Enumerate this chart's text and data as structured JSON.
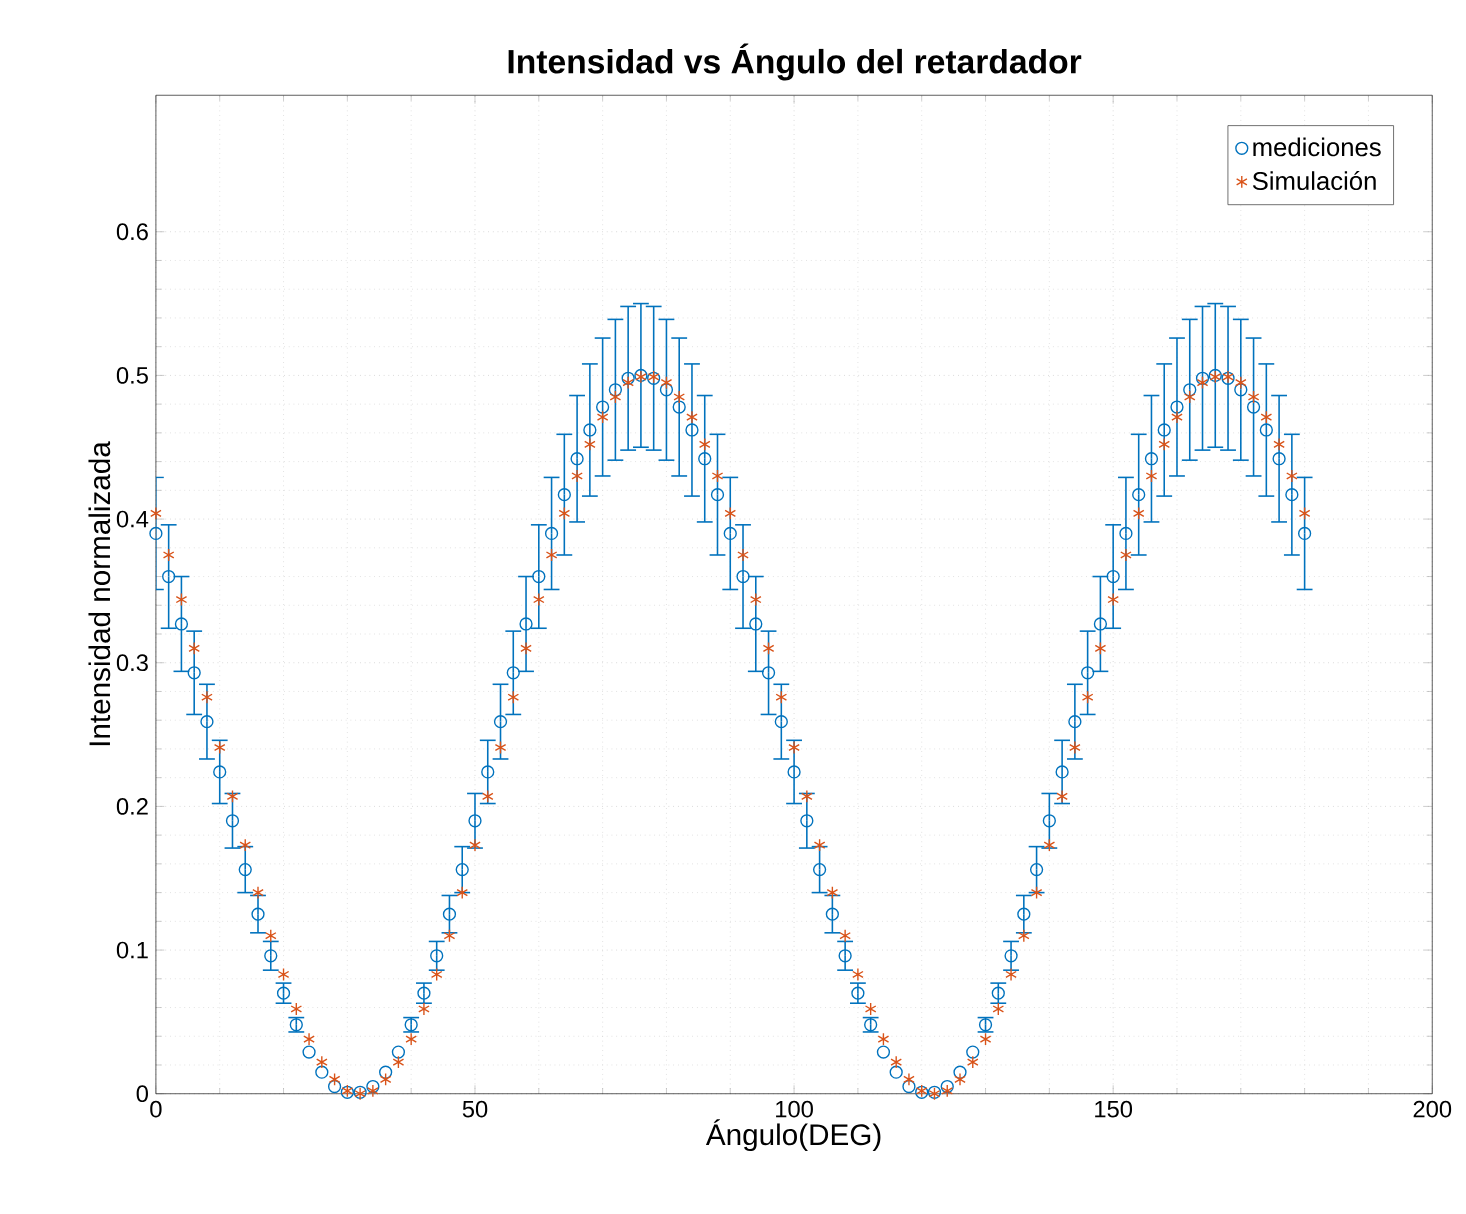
{
  "chart_data": {
    "type": "scatter",
    "title": "**Intensidad vs Ángulo del retardador**",
    "xlabel": "Ángulo(DEG)",
    "ylabel": "Intensidad normalizada",
    "x": [
      0,
      2,
      4,
      6,
      8,
      10,
      12,
      14,
      16,
      18,
      20,
      22,
      24,
      26,
      28,
      30,
      32,
      34,
      36,
      38,
      40,
      42,
      44,
      46,
      48,
      50,
      52,
      54,
      56,
      58,
      60,
      62,
      64,
      66,
      68,
      70,
      72,
      74,
      76,
      78,
      80,
      82,
      84,
      86,
      88,
      90,
      92,
      94,
      96,
      98,
      100,
      102,
      104,
      106,
      108,
      110,
      112,
      114,
      116,
      118,
      120,
      122,
      124,
      126,
      128,
      130,
      132,
      134,
      136,
      138,
      140,
      142,
      144,
      146,
      148,
      150,
      152,
      154,
      156,
      158,
      160,
      162,
      164,
      166,
      168,
      170,
      172,
      174,
      176,
      178,
      180
    ],
    "series": [
      {
        "name": "mediciones",
        "color": "#0072bd",
        "marker": "circle",
        "values": [
          0.39,
          0.36,
          0.327,
          0.293,
          0.259,
          0.224,
          0.19,
          0.156,
          0.125,
          0.096,
          0.07,
          0.048,
          0.029,
          0.015,
          0.005,
          0.001,
          0.001,
          0.005,
          0.015,
          0.029,
          0.048,
          0.07,
          0.096,
          0.125,
          0.156,
          0.19,
          0.224,
          0.259,
          0.293,
          0.327,
          0.36,
          0.39,
          0.417,
          0.442,
          0.462,
          0.478,
          0.49,
          0.498,
          0.5,
          0.498,
          0.49,
          0.478,
          0.462,
          0.442,
          0.417,
          0.39,
          0.36,
          0.327,
          0.293,
          0.259,
          0.224,
          0.19,
          0.156,
          0.125,
          0.096,
          0.07,
          0.048,
          0.029,
          0.015,
          0.005,
          0.001,
          0.001,
          0.005,
          0.015,
          0.029,
          0.048,
          0.07,
          0.096,
          0.125,
          0.156,
          0.19,
          0.224,
          0.259,
          0.293,
          0.327,
          0.36,
          0.39,
          0.417,
          0.442,
          0.462,
          0.478,
          0.49,
          0.498,
          0.5,
          0.498,
          0.49,
          0.478,
          0.462,
          0.442,
          0.417,
          0.39
        ],
        "errors": [
          0.039,
          0.036,
          0.033,
          0.029,
          0.026,
          0.022,
          0.019,
          0.016,
          0.013,
          0.01,
          0.007,
          0.005,
          null,
          null,
          null,
          null,
          null,
          null,
          null,
          null,
          0.005,
          0.007,
          0.01,
          0.013,
          0.016,
          0.019,
          0.022,
          0.026,
          0.029,
          0.033,
          0.036,
          0.039,
          0.042,
          0.044,
          0.046,
          0.048,
          0.049,
          0.05,
          0.05,
          0.05,
          0.049,
          0.048,
          0.046,
          0.044,
          0.042,
          0.039,
          0.036,
          0.033,
          0.029,
          0.026,
          0.022,
          0.019,
          0.016,
          0.013,
          0.01,
          0.007,
          0.005,
          null,
          null,
          null,
          null,
          null,
          null,
          null,
          null,
          0.005,
          0.007,
          0.01,
          0.013,
          0.016,
          0.019,
          0.022,
          0.026,
          0.029,
          0.033,
          0.036,
          0.039,
          0.042,
          0.044,
          0.046,
          0.048,
          0.049,
          0.05,
          0.05,
          0.05,
          0.049,
          0.048,
          0.046,
          0.044,
          0.042,
          0.039
        ]
      },
      {
        "name": "Simulación",
        "color": "#d95319",
        "marker": "cross",
        "values": [
          0.404,
          0.375,
          0.344,
          0.31,
          0.276,
          0.241,
          0.207,
          0.173,
          0.14,
          0.11,
          0.083,
          0.059,
          0.038,
          0.022,
          0.01,
          0.002,
          0,
          0.002,
          0.01,
          0.022,
          0.038,
          0.059,
          0.083,
          0.11,
          0.14,
          0.173,
          0.207,
          0.241,
          0.276,
          0.31,
          0.344,
          0.375,
          0.404,
          0.43,
          0.452,
          0.471,
          0.485,
          0.495,
          0.499,
          0.499,
          0.495,
          0.485,
          0.471,
          0.452,
          0.43,
          0.404,
          0.375,
          0.344,
          0.31,
          0.276,
          0.241,
          0.207,
          0.173,
          0.14,
          0.11,
          0.083,
          0.059,
          0.038,
          0.022,
          0.01,
          0.002,
          0,
          0.002,
          0.01,
          0.022,
          0.038,
          0.059,
          0.083,
          0.11,
          0.14,
          0.173,
          0.207,
          0.241,
          0.276,
          0.31,
          0.344,
          0.375,
          0.404,
          0.43,
          0.452,
          0.471,
          0.485,
          0.495,
          0.499,
          0.499,
          0.495,
          0.485,
          0.471,
          0.452,
          0.43,
          0.404
        ]
      }
    ],
    "xlim": [
      0,
      200
    ],
    "xticks": [
      0,
      50,
      100,
      150,
      200
    ],
    "ylim": [
      0,
      0.695
    ],
    "yticks": [
      0,
      0.1,
      0.2,
      0.3,
      0.4,
      0.5,
      0.6
    ],
    "grid": true,
    "legend": "top right"
  }
}
